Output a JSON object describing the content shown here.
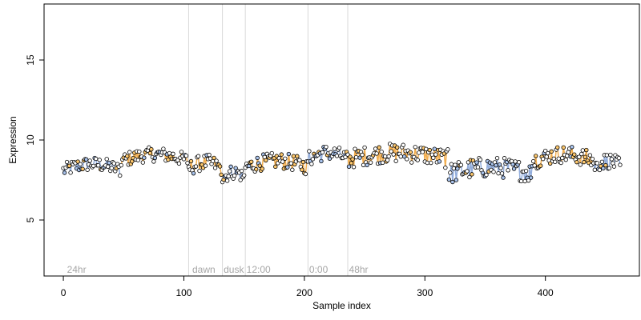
{
  "chart_data": {
    "type": "scatter",
    "title": "",
    "xlabel": "Sample index",
    "ylabel": "Expression",
    "xlim": [
      -16,
      478
    ],
    "ylim": [
      1.5,
      18.5
    ],
    "xticks": [
      0,
      100,
      200,
      300,
      400
    ],
    "yticks": [
      5,
      10,
      15
    ],
    "grid": false,
    "legend": "none",
    "colors": {
      "point_fill_default": "#ffffff",
      "point_fill_orange": "#fdc86e",
      "point_fill_blue": "#a9c3ec",
      "point_stroke": "#000000",
      "line_orange": "#f0a030",
      "line_blue": "#7f9fd6",
      "divider": "#d9d9d9",
      "region_label": "#a6a6a6"
    },
    "dividers": [
      104,
      132,
      151,
      203,
      236
    ],
    "region_labels": [
      {
        "text": "24hr",
        "x": 3
      },
      {
        "text": "dawn",
        "x": 107
      },
      {
        "text": "dusk",
        "x": 133
      },
      {
        "text": "12:00",
        "x": 152
      },
      {
        "text": "0:00",
        "x": 204
      },
      {
        "text": "48hr",
        "x": 237
      }
    ],
    "segments": [
      {
        "x0": 0,
        "x1": 48,
        "base": 8.1,
        "amp": 0.45,
        "color": "blue"
      },
      {
        "x0": 48,
        "x1": 104,
        "base": 8.7,
        "amp": 0.45,
        "color": "orange"
      },
      {
        "x0": 104,
        "x1": 132,
        "base": 8.2,
        "amp": 0.5,
        "color": "orange"
      },
      {
        "x0": 132,
        "x1": 151,
        "base": 7.6,
        "amp": 0.45,
        "color": "blue"
      },
      {
        "x0": 151,
        "x1": 203,
        "base": 8.3,
        "amp": 0.5,
        "color": "orange"
      },
      {
        "x0": 203,
        "x1": 236,
        "base": 8.8,
        "amp": 0.5,
        "color": "blue"
      },
      {
        "x0": 236,
        "x1": 320,
        "base": 8.8,
        "amp": 0.6,
        "color": "orange"
      },
      {
        "x0": 320,
        "x1": 390,
        "base": 7.9,
        "amp": 0.65,
        "color": "blue"
      },
      {
        "x0": 390,
        "x1": 440,
        "base": 8.7,
        "amp": 0.55,
        "color": "orange"
      },
      {
        "x0": 440,
        "x1": 463,
        "base": 8.3,
        "amp": 0.5,
        "color": "blue"
      }
    ]
  }
}
